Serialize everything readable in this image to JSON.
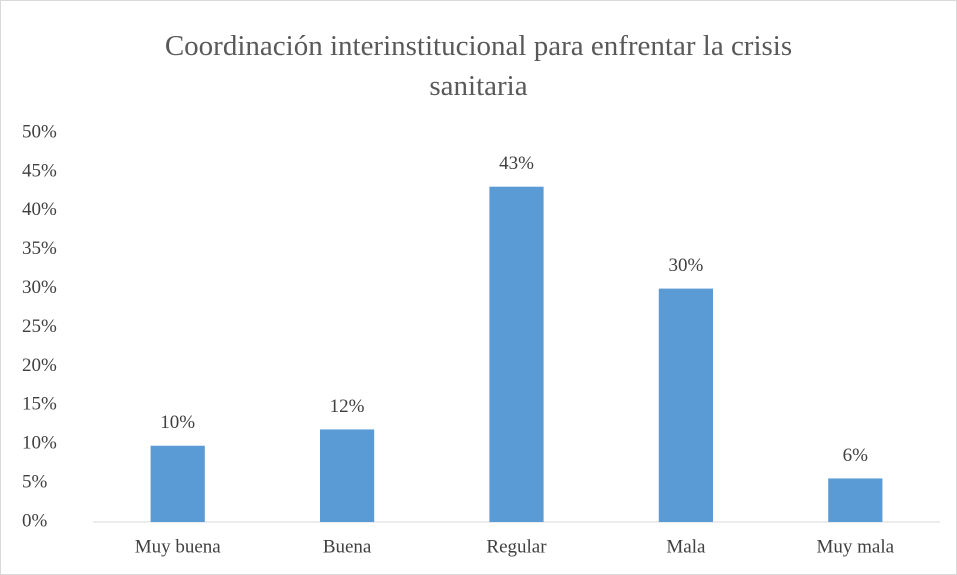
{
  "chart_data": {
    "type": "bar",
    "title": "Coordinación interinstitucional para enfrentar la crisis sanitaria",
    "categories": [
      "Muy buena",
      "Buena",
      "Regular",
      "Mala",
      "Muy mala"
    ],
    "values": [
      9.8,
      11.9,
      43.1,
      30,
      5.6
    ],
    "value_labels": [
      "10%",
      "12%",
      "43%",
      "30%",
      "6%"
    ],
    "color": "#5b9bd5",
    "ylim": [
      0,
      50
    ],
    "yticks": [
      {
        "value": 0,
        "label": "0%"
      },
      {
        "value": 5,
        "label": "5%"
      },
      {
        "value": 10,
        "label": "10%"
      },
      {
        "value": 15,
        "label": "15%"
      },
      {
        "value": 20,
        "label": "20%"
      },
      {
        "value": 25,
        "label": "25%"
      },
      {
        "value": 30,
        "label": "30%"
      },
      {
        "value": 35,
        "label": "35%"
      },
      {
        "value": 40,
        "label": "40%"
      },
      {
        "value": 45,
        "label": "45%"
      },
      {
        "value": 50,
        "label": "50%"
      }
    ],
    "grid": false
  }
}
